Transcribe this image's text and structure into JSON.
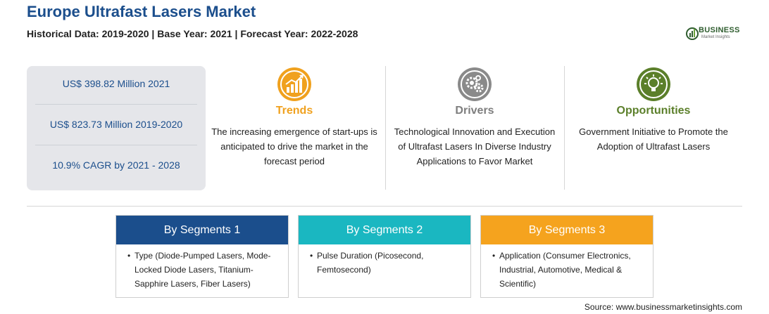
{
  "header": {
    "title": "Europe Ultrafast Lasers Market",
    "subtitle": "Historical Data: 2019-2020 | Base Year: 2021 | Forecast Year: 2022-2028"
  },
  "logo": {
    "line1": "BUSINESS",
    "line2": "Market Insights"
  },
  "stats": [
    "US$ 398.82 Million 2021",
    "US$ 823.73 Million 2019-2020",
    "10.9% CAGR by 2021 - 2028"
  ],
  "columns": {
    "trends": {
      "heading": "Trends",
      "text": "The increasing emergence of start-ups is anticipated to drive the market in the forecast period",
      "icon": "chart-growth-icon"
    },
    "drivers": {
      "heading": "Drivers",
      "text": "Technological Innovation and Execution of Ultrafast Lasers In Diverse Industry Applications to Favor Market",
      "icon": "gears-icon"
    },
    "opportunities": {
      "heading": "Opportunities",
      "text": "Government Initiative to Promote the Adoption of Ultrafast Lasers",
      "icon": "lightbulb-icon"
    }
  },
  "segments": [
    {
      "title": "By Segments 1",
      "bullet": "•",
      "text": "Type (Diode-Pumped Lasers, Mode-Locked Diode Lasers, Titanium-Sapphire Lasers, Fiber Lasers)"
    },
    {
      "title": "By Segments 2",
      "bullet": "•",
      "text": "Pulse Duration (Picosecond, Femtosecond)"
    },
    {
      "title": "By Segments 3",
      "bullet": "•",
      "text": "Application (Consumer Electronics, Industrial, Automotive, Medical & Scientific)"
    }
  ],
  "source": "Source: www.businessmarketinsights.com",
  "colors": {
    "title": "#1b4e8c",
    "trends": "#f0a11e",
    "drivers": "#7e7e7e",
    "opportunities": "#5b7f2a",
    "segment1": "#1b4e8c",
    "segment2": "#1ab7c1",
    "segment3": "#f5a31e"
  }
}
